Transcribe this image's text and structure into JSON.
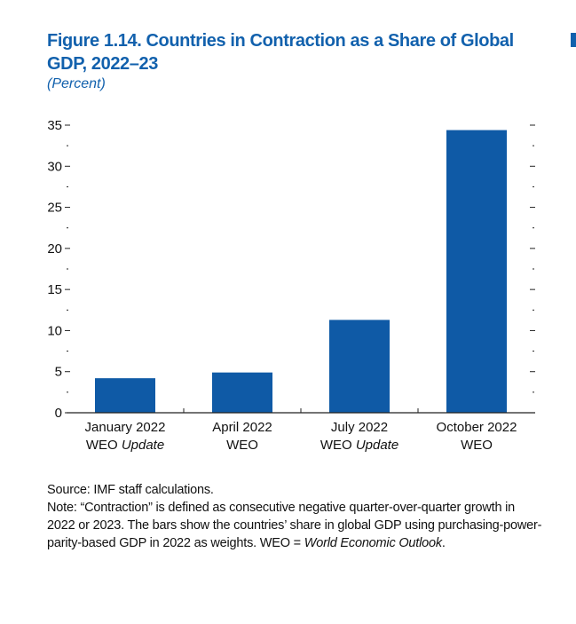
{
  "figure": {
    "title": "Figure 1.14.  Countries in Contraction as a Share of Global GDP, 2022–23",
    "subtitle": "(Percent)"
  },
  "chart_data": {
    "type": "bar",
    "categories": [
      {
        "line1": "January 2022",
        "line2_plain": "WEO ",
        "line2_italic": "Update"
      },
      {
        "line1": "April 2022",
        "line2_plain": "WEO",
        "line2_italic": ""
      },
      {
        "line1": "July 2022",
        "line2_plain": "WEO ",
        "line2_italic": "Update"
      },
      {
        "line1": "October 2022",
        "line2_plain": "WEO",
        "line2_italic": ""
      }
    ],
    "values": [
      4.2,
      4.9,
      11.3,
      34.4
    ],
    "ylim": [
      0,
      35
    ],
    "yticks": [
      "0",
      "5",
      "10",
      "15",
      "20",
      "25",
      "30",
      "35"
    ],
    "bar_color": "#0f5aa6"
  },
  "notes": {
    "source": "Source: IMF staff calculations.",
    "note_text": "Note: “Contraction” is defined as consecutive negative quarter-over-quarter growth in 2022 or 2023. The bars show the countries’ share in global GDP using purchasing-power-parity-based GDP in 2022 as weights. WEO = ",
    "note_italic": "World Economic Outlook",
    "note_end": "."
  }
}
